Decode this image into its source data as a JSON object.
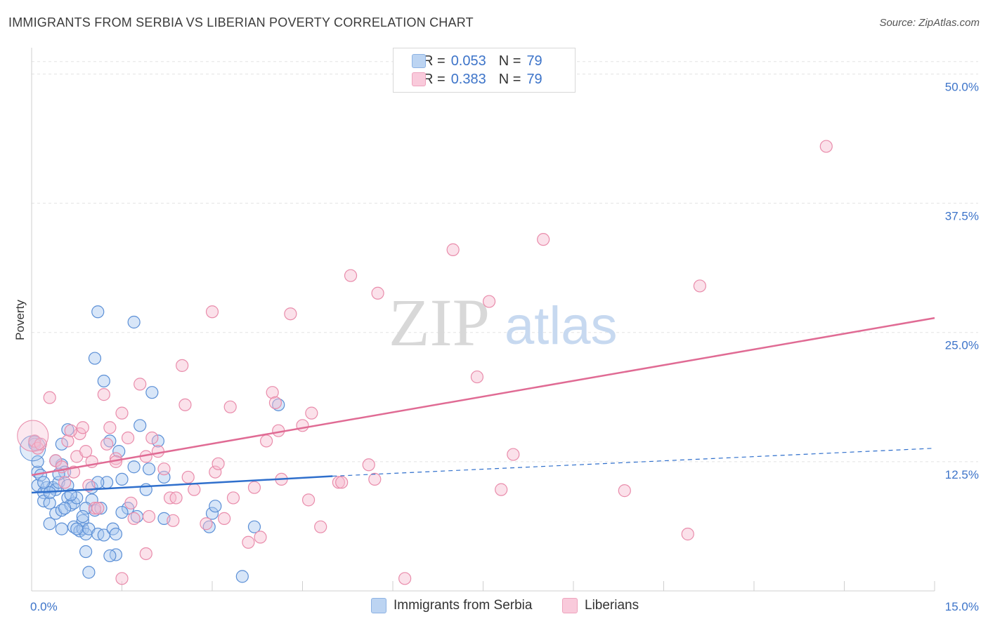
{
  "title": "IMMIGRANTS FROM SERBIA VS LIBERIAN POVERTY CORRELATION CHART",
  "source": "Source: ZipAtlas.com",
  "watermark": {
    "zip": "ZIP",
    "atlas": "atlas"
  },
  "colors": {
    "serbia_fill": "#a9c8ef",
    "serbia_stroke": "#5b8fd6",
    "serbia_line": "#2f6fcc",
    "liberia_fill": "#f7bcd0",
    "liberia_stroke": "#e98cab",
    "liberia_line": "#e06b94",
    "tick_label": "#3d74c9",
    "grid": "#e3e3e3"
  },
  "legend": {
    "serbia": {
      "r_label": "R =",
      "r_value": "0.053",
      "n_label": "N =",
      "n_value": "79"
    },
    "liberia": {
      "r_label": "R =",
      "r_value": "0.383",
      "n_label": "N =",
      "n_value": "79"
    }
  },
  "chart_data": {
    "type": "scatter",
    "title": "IMMIGRANTS FROM SERBIA VS LIBERIAN POVERTY CORRELATION CHART",
    "xlabel": "",
    "ylabel": "Poverty",
    "xlim": [
      0,
      15
    ],
    "ylim": [
      0,
      52
    ],
    "x_tick_labels": [
      {
        "value": 0,
        "label": "0.0%"
      },
      {
        "value": 15,
        "label": "15.0%"
      }
    ],
    "y_tick_labels": [
      {
        "value": 12.5,
        "label": "12.5%"
      },
      {
        "value": 25.0,
        "label": "25.0%"
      },
      {
        "value": 37.5,
        "label": "37.5%"
      },
      {
        "value": 50.0,
        "label": "50.0%"
      }
    ],
    "grid": true,
    "legend_position": "top-center",
    "series": [
      {
        "name": "Immigrants from Serbia",
        "key": "serbia",
        "trend": {
          "x_start": 0,
          "y_start": 9.5,
          "x_solid_end": 5.0,
          "y_solid_end": 11.1,
          "x_end": 15,
          "y_end": 13.8
        },
        "points": [
          [
            0.05,
            14.4
          ],
          [
            0.05,
            14.2
          ],
          [
            0.1,
            11.5
          ],
          [
            0.1,
            10.2
          ],
          [
            0.15,
            11.2
          ],
          [
            0.2,
            9.5
          ],
          [
            0.2,
            8.7
          ],
          [
            0.25,
            10.0
          ],
          [
            0.3,
            6.5
          ],
          [
            0.3,
            8.5
          ],
          [
            0.35,
            10.0
          ],
          [
            0.4,
            9.8
          ],
          [
            0.4,
            7.5
          ],
          [
            0.45,
            10.5
          ],
          [
            0.5,
            12.2
          ],
          [
            0.5,
            7.8
          ],
          [
            0.55,
            11.5
          ],
          [
            0.5,
            6.0
          ],
          [
            0.6,
            9.0
          ],
          [
            0.6,
            10.2
          ],
          [
            0.65,
            8.3
          ],
          [
            0.7,
            8.5
          ],
          [
            0.7,
            6.2
          ],
          [
            0.75,
            9.0
          ],
          [
            0.8,
            5.8
          ],
          [
            0.85,
            6.0
          ],
          [
            0.85,
            6.8
          ],
          [
            0.9,
            5.5
          ],
          [
            0.9,
            3.8
          ],
          [
            0.95,
            6.0
          ],
          [
            1.0,
            8.8
          ],
          [
            1.0,
            10.0
          ],
          [
            1.05,
            7.8
          ],
          [
            1.1,
            5.5
          ],
          [
            1.15,
            8.0
          ],
          [
            1.2,
            5.4
          ],
          [
            1.25,
            10.5
          ],
          [
            1.3,
            14.5
          ],
          [
            1.35,
            6.0
          ],
          [
            1.4,
            5.5
          ],
          [
            1.45,
            13.5
          ],
          [
            1.5,
            10.8
          ],
          [
            1.6,
            8.0
          ],
          [
            1.7,
            12.0
          ],
          [
            1.75,
            7.2
          ],
          [
            1.8,
            16.0
          ],
          [
            1.9,
            9.8
          ],
          [
            1.95,
            11.8
          ],
          [
            2.0,
            19.2
          ],
          [
            2.1,
            14.5
          ],
          [
            2.2,
            11.0
          ],
          [
            0.6,
            15.6
          ],
          [
            0.5,
            14.2
          ],
          [
            0.4,
            12.6
          ],
          [
            1.1,
            10.5
          ],
          [
            0.9,
            8.0
          ],
          [
            1.1,
            27.0
          ],
          [
            1.7,
            26.0
          ],
          [
            1.05,
            22.5
          ],
          [
            1.2,
            20.3
          ],
          [
            1.4,
            3.5
          ],
          [
            0.95,
            1.8
          ],
          [
            3.5,
            1.4
          ],
          [
            3.7,
            6.2
          ],
          [
            2.95,
            6.2
          ],
          [
            3.0,
            7.5
          ],
          [
            3.05,
            8.2
          ],
          [
            4.1,
            18.0
          ],
          [
            1.3,
            3.4
          ],
          [
            0.75,
            6.0
          ],
          [
            0.65,
            9.3
          ],
          [
            0.2,
            10.5
          ],
          [
            0.1,
            12.5
          ],
          [
            0.3,
            9.5
          ],
          [
            0.55,
            8.0
          ],
          [
            0.85,
            7.2
          ],
          [
            1.5,
            7.6
          ],
          [
            2.2,
            7.0
          ],
          [
            0.45,
            11.3
          ]
        ]
      },
      {
        "name": "Liberians",
        "key": "liberia",
        "trend": {
          "x_start": 0,
          "y_start": 11.2,
          "x_end": 15,
          "y_end": 26.4
        },
        "points": [
          [
            0.05,
            14.5
          ],
          [
            0.1,
            13.8
          ],
          [
            0.15,
            14.2
          ],
          [
            0.3,
            18.7
          ],
          [
            0.4,
            12.6
          ],
          [
            0.5,
            12.0
          ],
          [
            0.55,
            10.5
          ],
          [
            0.6,
            14.5
          ],
          [
            0.7,
            11.5
          ],
          [
            0.75,
            13.0
          ],
          [
            0.8,
            15.2
          ],
          [
            0.85,
            15.8
          ],
          [
            0.9,
            13.5
          ],
          [
            0.95,
            10.2
          ],
          [
            1.0,
            12.5
          ],
          [
            1.05,
            8.0
          ],
          [
            1.2,
            19.0
          ],
          [
            1.25,
            14.2
          ],
          [
            1.3,
            15.8
          ],
          [
            1.4,
            12.8
          ],
          [
            1.5,
            17.2
          ],
          [
            1.6,
            14.8
          ],
          [
            1.65,
            8.5
          ],
          [
            1.7,
            7.0
          ],
          [
            1.8,
            20.0
          ],
          [
            1.9,
            13.0
          ],
          [
            1.95,
            7.2
          ],
          [
            2.0,
            14.8
          ],
          [
            2.1,
            13.5
          ],
          [
            2.2,
            11.8
          ],
          [
            2.3,
            9.0
          ],
          [
            2.35,
            6.8
          ],
          [
            2.5,
            21.8
          ],
          [
            2.55,
            18.0
          ],
          [
            2.6,
            11.0
          ],
          [
            2.7,
            9.8
          ],
          [
            2.9,
            6.5
          ],
          [
            3.0,
            27.0
          ],
          [
            3.05,
            11.5
          ],
          [
            3.1,
            12.3
          ],
          [
            3.2,
            7.0
          ],
          [
            3.3,
            17.8
          ],
          [
            3.35,
            9.0
          ],
          [
            3.6,
            4.7
          ],
          [
            3.7,
            10.0
          ],
          [
            3.8,
            5.2
          ],
          [
            3.9,
            14.5
          ],
          [
            4.0,
            19.2
          ],
          [
            4.05,
            18.2
          ],
          [
            4.1,
            15.5
          ],
          [
            4.15,
            10.8
          ],
          [
            4.3,
            26.8
          ],
          [
            4.5,
            16.0
          ],
          [
            4.6,
            8.8
          ],
          [
            4.65,
            17.2
          ],
          [
            4.8,
            6.2
          ],
          [
            5.1,
            10.5
          ],
          [
            5.15,
            10.5
          ],
          [
            5.3,
            30.5
          ],
          [
            5.6,
            12.2
          ],
          [
            5.7,
            10.8
          ],
          [
            5.75,
            28.8
          ],
          [
            6.2,
            1.2
          ],
          [
            7.0,
            33.0
          ],
          [
            7.4,
            20.7
          ],
          [
            7.6,
            28.0
          ],
          [
            7.8,
            9.8
          ],
          [
            8.0,
            13.2
          ],
          [
            8.5,
            34.0
          ],
          [
            9.85,
            9.7
          ],
          [
            10.9,
            5.5
          ],
          [
            11.1,
            29.5
          ],
          [
            13.2,
            43.0
          ],
          [
            1.5,
            1.2
          ],
          [
            1.9,
            3.6
          ],
          [
            2.4,
            9.0
          ],
          [
            1.1,
            8.0
          ],
          [
            0.65,
            15.5
          ],
          [
            1.4,
            12.5
          ]
        ]
      }
    ]
  },
  "bottom_legend": {
    "serbia_label": "Immigrants from Serbia",
    "liberia_label": "Liberians"
  }
}
